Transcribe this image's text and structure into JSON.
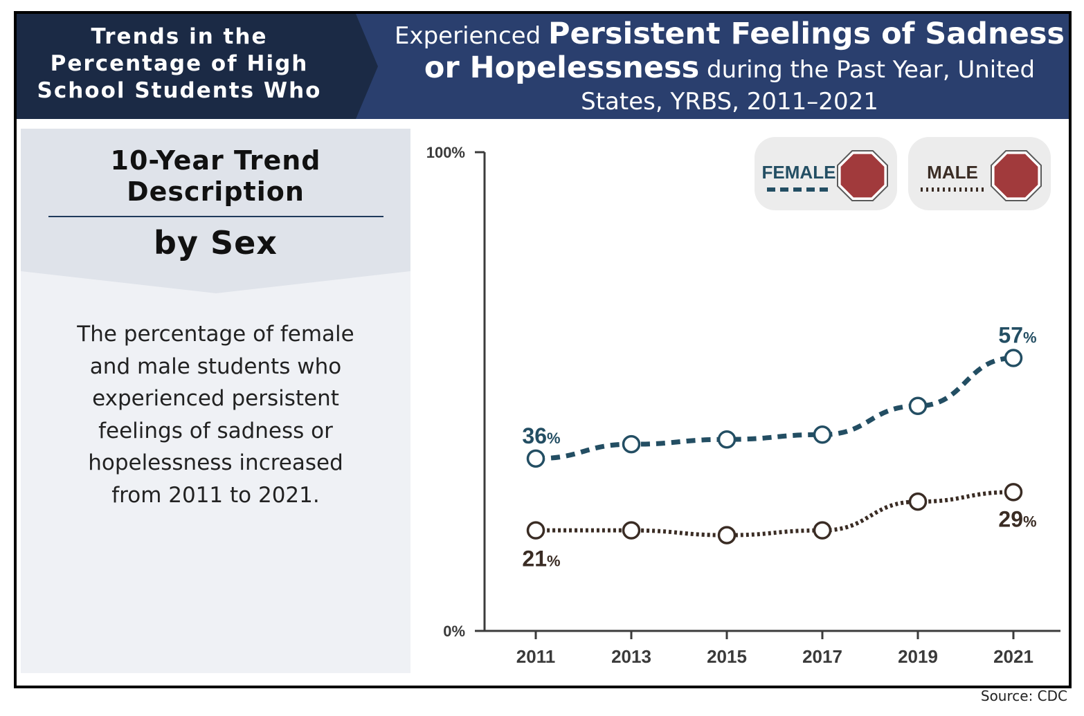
{
  "header": {
    "left_text": "Trends in the Percentage of High School Students Who",
    "right_prefix": "Experienced",
    "right_emphasis": "Persistent Feelings of Sadness or Hopelessness",
    "right_suffix": "during the Past Year, United States, YRBS, 2011–2021",
    "colors": {
      "dark_navy": "#1b2a45",
      "navy": "#2a3f6e"
    }
  },
  "sidebar": {
    "trend_title": "10-Year Trend Description",
    "subtitle": "by Sex",
    "description": "The percentage of female and male students who experienced persistent feelings of sadness or hopelessness increased from 2011 to 2021."
  },
  "chart_data": {
    "type": "line",
    "x": [
      "2011",
      "2013",
      "2015",
      "2017",
      "2019",
      "2021"
    ],
    "ylim": [
      0,
      100
    ],
    "ytick_labels": [
      "100%",
      "0%"
    ],
    "series": [
      {
        "name": "FEMALE",
        "values": [
          36,
          39,
          40,
          41,
          47,
          57
        ],
        "color": "#234e63",
        "dash": "dashed",
        "labels": [
          {
            "index": 0,
            "value": "36",
            "unit": "%"
          },
          {
            "index": 5,
            "value": "57",
            "unit": "%"
          }
        ],
        "trend_icon": "stop-sign-icon"
      },
      {
        "name": "MALE",
        "values": [
          21,
          21,
          20,
          21,
          27,
          29
        ],
        "color": "#3a2c24",
        "dash": "dotted",
        "labels": [
          {
            "index": 0,
            "value": "21",
            "unit": "%"
          },
          {
            "index": 5,
            "value": "29",
            "unit": "%"
          }
        ],
        "trend_icon": "stop-sign-icon"
      }
    ],
    "legend_placement": "top-right",
    "grid": false,
    "stop_sign_color": "#a13a3c"
  },
  "source": "Source: CDC"
}
